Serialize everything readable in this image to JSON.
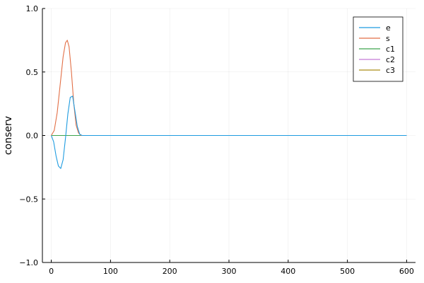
{
  "chart_data": {
    "type": "line",
    "title": "",
    "xlabel": "",
    "ylabel": "conserv",
    "xlim": [
      -15,
      615
    ],
    "ylim": [
      -1,
      1
    ],
    "xticks": [
      0,
      100,
      200,
      300,
      400,
      500,
      600
    ],
    "yticks": [
      -1.0,
      -0.5,
      0.0,
      0.5,
      1.0
    ],
    "xtick_labels": [
      "0",
      "100",
      "200",
      "300",
      "400",
      "500",
      "600"
    ],
    "ytick_labels": [
      "−1.0",
      "−0.5",
      "0.0",
      "0.5",
      "1.0"
    ],
    "grid": true,
    "legend_position": "top-right",
    "series": [
      {
        "name": "e",
        "color": "#1f9ce0",
        "x": [
          0,
          4,
          8,
          12,
          16,
          20,
          24,
          28,
          32,
          36,
          40,
          44,
          48,
          52,
          600
        ],
        "y": [
          0.0,
          -0.05,
          -0.16,
          -0.24,
          -0.26,
          -0.19,
          -0.02,
          0.17,
          0.3,
          0.31,
          0.19,
          0.07,
          0.01,
          0.0,
          0.0
        ]
      },
      {
        "name": "s",
        "color": "#e26f46",
        "x": [
          0,
          5,
          10,
          15,
          20,
          24,
          27,
          30,
          34,
          38,
          42,
          46,
          50,
          54,
          600
        ],
        "y": [
          0.0,
          0.04,
          0.18,
          0.4,
          0.62,
          0.73,
          0.75,
          0.7,
          0.5,
          0.25,
          0.08,
          0.02,
          0.0,
          0.0,
          0.0
        ]
      },
      {
        "name": "c1",
        "color": "#3ea44e",
        "x": [
          0,
          600
        ],
        "y": [
          0.0,
          0.0
        ]
      },
      {
        "name": "c2",
        "color": "#c37bd6",
        "x": [
          0,
          600
        ],
        "y": [
          0.0,
          0.0
        ]
      },
      {
        "name": "c3",
        "color": "#ac8d18",
        "x": [
          0,
          600
        ],
        "y": [
          0.0,
          0.0
        ]
      }
    ]
  }
}
